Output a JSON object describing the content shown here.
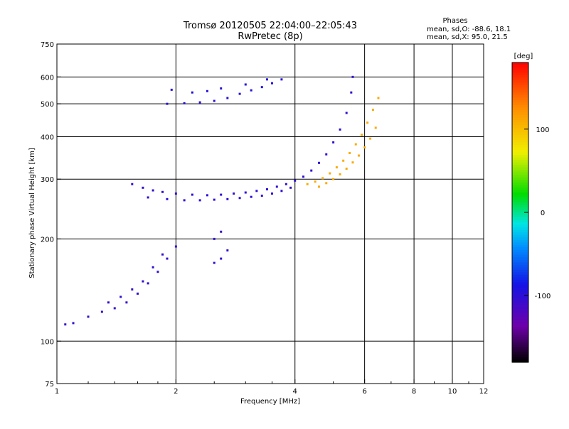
{
  "header": {
    "title_line1": "Tromsø 20120505 22:04:00–22:05:43",
    "title_line2": "RwPretec (8p)",
    "phases_title": "Phases",
    "phases_line1": "mean, sd,O: -88.6, 18.1",
    "phases_line2": "mean, sd,X:  95.0, 21.5"
  },
  "colorbar": {
    "unit_label": "[deg]",
    "range": [
      -180,
      180
    ],
    "ticks": [
      {
        "value": 100,
        "label": "100"
      },
      {
        "value": 0,
        "label": "0"
      },
      {
        "value": -100,
        "label": "-100"
      }
    ]
  },
  "chart_data": {
    "type": "scatter",
    "title": "Tromsø 20120505 22:04:00–22:05:43",
    "subtitle": "RwPretec (8p)",
    "xlabel": "Frequency [MHz]",
    "ylabel": "Stationary phase Virtual Height [km]",
    "xscale": "log",
    "yscale": "log",
    "xlim": [
      1,
      12
    ],
    "ylim": [
      75,
      750
    ],
    "grid": true,
    "x_ticks": [
      {
        "value": 1,
        "label": "1"
      },
      {
        "value": 2,
        "label": "2"
      },
      {
        "value": 4,
        "label": "4"
      },
      {
        "value": 6,
        "label": "6"
      },
      {
        "value": 8,
        "label": "8"
      },
      {
        "value": 10,
        "label": "10"
      },
      {
        "value": 12,
        "label": "12"
      }
    ],
    "x_grid": [
      2,
      4,
      6,
      8,
      10
    ],
    "y_ticks": [
      {
        "value": 75,
        "label": "75"
      },
      {
        "value": 100,
        "label": "100"
      },
      {
        "value": 200,
        "label": "200"
      },
      {
        "value": 300,
        "label": "300"
      },
      {
        "value": 400,
        "label": "400"
      },
      {
        "value": 500,
        "label": "500"
      },
      {
        "value": 600,
        "label": "600"
      },
      {
        "value": 750,
        "label": "750"
      }
    ],
    "y_grid": [
      100,
      200,
      300,
      400,
      500,
      600
    ],
    "color_by": "Phases [deg]",
    "series": [
      {
        "description": "O-mode F-layer trace (blue)",
        "phase": -100,
        "points": [
          [
            1.55,
            290
          ],
          [
            1.65,
            283
          ],
          [
            1.75,
            278
          ],
          [
            1.85,
            275
          ],
          [
            2.0,
            272
          ],
          [
            2.2,
            270
          ],
          [
            2.4,
            269
          ],
          [
            2.6,
            270
          ],
          [
            2.8,
            272
          ],
          [
            3.0,
            274
          ],
          [
            3.2,
            277
          ],
          [
            3.4,
            280
          ],
          [
            3.6,
            285
          ],
          [
            3.8,
            290
          ],
          [
            4.0,
            297
          ],
          [
            4.2,
            305
          ],
          [
            4.4,
            318
          ],
          [
            4.6,
            335
          ],
          [
            4.8,
            355
          ],
          [
            5.0,
            385
          ],
          [
            5.2,
            420
          ],
          [
            5.4,
            470
          ],
          [
            5.55,
            540
          ],
          [
            5.6,
            600
          ],
          [
            1.7,
            265
          ],
          [
            1.9,
            262
          ],
          [
            2.1,
            260
          ],
          [
            2.3,
            260
          ],
          [
            2.5,
            261
          ],
          [
            2.7,
            262
          ],
          [
            2.9,
            264
          ],
          [
            3.1,
            266
          ],
          [
            3.3,
            268
          ],
          [
            3.5,
            272
          ],
          [
            3.7,
            277
          ],
          [
            3.9,
            283
          ]
        ]
      },
      {
        "description": "X-mode F-layer trace (yellow-orange)",
        "phase": 110,
        "points": [
          [
            4.3,
            290
          ],
          [
            4.5,
            295
          ],
          [
            4.7,
            302
          ],
          [
            4.9,
            312
          ],
          [
            5.1,
            325
          ],
          [
            5.3,
            340
          ],
          [
            5.5,
            358
          ],
          [
            5.7,
            380
          ],
          [
            5.9,
            405
          ],
          [
            6.1,
            440
          ],
          [
            6.3,
            480
          ],
          [
            6.5,
            520
          ],
          [
            4.6,
            285
          ],
          [
            4.8,
            292
          ],
          [
            5.0,
            300
          ],
          [
            5.2,
            310
          ],
          [
            5.4,
            322
          ],
          [
            5.6,
            336
          ],
          [
            5.8,
            352
          ],
          [
            6.0,
            372
          ],
          [
            6.2,
            395
          ],
          [
            6.4,
            425
          ]
        ]
      },
      {
        "description": "Multiple-hop echoes near 500–600 km (blue)",
        "phase": -95,
        "points": [
          [
            1.9,
            500
          ],
          [
            2.1,
            502
          ],
          [
            2.3,
            505
          ],
          [
            2.5,
            510
          ],
          [
            2.7,
            520
          ],
          [
            2.9,
            535
          ],
          [
            3.1,
            548
          ],
          [
            3.3,
            560
          ],
          [
            3.5,
            575
          ],
          [
            3.7,
            590
          ],
          [
            1.95,
            550
          ],
          [
            2.2,
            540
          ],
          [
            2.4,
            545
          ],
          [
            2.6,
            555
          ],
          [
            3.0,
            570
          ],
          [
            3.4,
            590
          ]
        ]
      },
      {
        "description": "Lower E/Es region echoes (blue)",
        "phase": -105,
        "points": [
          [
            1.05,
            112
          ],
          [
            1.1,
            113
          ],
          [
            1.2,
            118
          ],
          [
            1.3,
            122
          ],
          [
            1.4,
            125
          ],
          [
            1.5,
            130
          ],
          [
            1.6,
            138
          ],
          [
            1.7,
            148
          ],
          [
            1.8,
            160
          ],
          [
            1.9,
            175
          ],
          [
            2.0,
            190
          ],
          [
            1.35,
            130
          ],
          [
            1.45,
            135
          ],
          [
            1.55,
            142
          ],
          [
            1.65,
            150
          ],
          [
            1.75,
            165
          ],
          [
            1.85,
            180
          ],
          [
            2.5,
            170
          ],
          [
            2.6,
            175
          ],
          [
            2.7,
            185
          ],
          [
            2.5,
            200
          ],
          [
            2.6,
            210
          ]
        ]
      }
    ]
  }
}
